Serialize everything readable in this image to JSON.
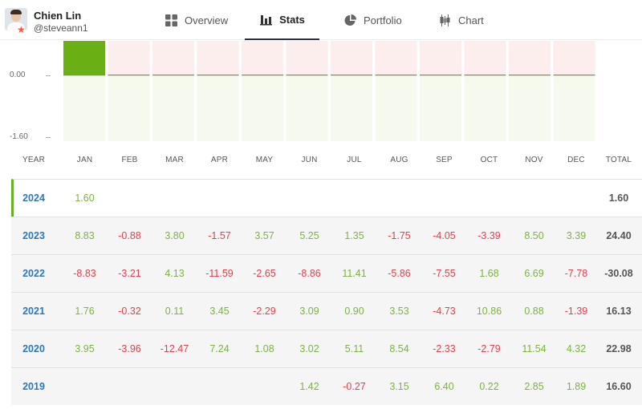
{
  "profile": {
    "name": "Chien Lin",
    "handle": "@steveann1"
  },
  "tabs": [
    {
      "id": "overview",
      "label": "Overview",
      "icon": "grid-icon",
      "active": false
    },
    {
      "id": "stats",
      "label": "Stats",
      "icon": "bar-chart-icon",
      "active": true
    },
    {
      "id": "portfolio",
      "label": "Portfolio",
      "icon": "pie-chart-icon",
      "active": false
    },
    {
      "id": "chart",
      "label": "Chart",
      "icon": "candlestick-icon",
      "active": false
    }
  ],
  "colors": {
    "positive": "#7cb342",
    "negative": "#e2404d",
    "year": "#2f78b7",
    "accent": "#6ab023"
  },
  "chart_data": {
    "type": "bar",
    "categories": [
      "JAN",
      "FEB",
      "MAR",
      "APR",
      "MAY",
      "JUN",
      "JUL",
      "AUG",
      "SEP",
      "OCT",
      "NOV",
      "DEC"
    ],
    "values": [
      1.6,
      0,
      0,
      0,
      0,
      0,
      0,
      0,
      0,
      0,
      0,
      0
    ],
    "yticks": [
      "0.00",
      "-1.60"
    ],
    "ylim": [
      -1.6,
      1.6
    ]
  },
  "table": {
    "headers": [
      "YEAR",
      "JAN",
      "FEB",
      "MAR",
      "APR",
      "MAY",
      "JUN",
      "JUL",
      "AUG",
      "SEP",
      "OCT",
      "NOV",
      "DEC",
      "TOTAL"
    ],
    "rows": [
      {
        "year": "2024",
        "months": [
          "1.60",
          "",
          "",
          "",
          "",
          "",
          "",
          "",
          "",
          "",
          "",
          ""
        ],
        "total": "1.60"
      },
      {
        "year": "2023",
        "months": [
          "8.83",
          "-0.88",
          "3.80",
          "-1.57",
          "3.57",
          "5.25",
          "1.35",
          "-1.75",
          "-4.05",
          "-3.39",
          "8.50",
          "3.39"
        ],
        "total": "24.40"
      },
      {
        "year": "2022",
        "months": [
          "-8.83",
          "-3.21",
          "4.13",
          "-11.59",
          "-2.65",
          "-8.86",
          "11.41",
          "-5.86",
          "-7.55",
          "1.68",
          "6.69",
          "-7.78"
        ],
        "total": "-30.08"
      },
      {
        "year": "2021",
        "months": [
          "1.76",
          "-0.32",
          "0.11",
          "3.45",
          "-2.29",
          "3.09",
          "0.90",
          "3.53",
          "-4.73",
          "10.86",
          "0.88",
          "-1.39"
        ],
        "total": "16.13"
      },
      {
        "year": "2020",
        "months": [
          "3.95",
          "-3.96",
          "-12.47",
          "7.24",
          "1.08",
          "3.02",
          "5.11",
          "8.54",
          "-2.33",
          "-2.79",
          "11.54",
          "4.32"
        ],
        "total": "22.98"
      },
      {
        "year": "2019",
        "months": [
          "",
          "",
          "",
          "",
          "",
          "1.42",
          "-0.27",
          "3.15",
          "6.40",
          "0.22",
          "2.85",
          "1.89"
        ],
        "total": "16.60"
      }
    ]
  }
}
